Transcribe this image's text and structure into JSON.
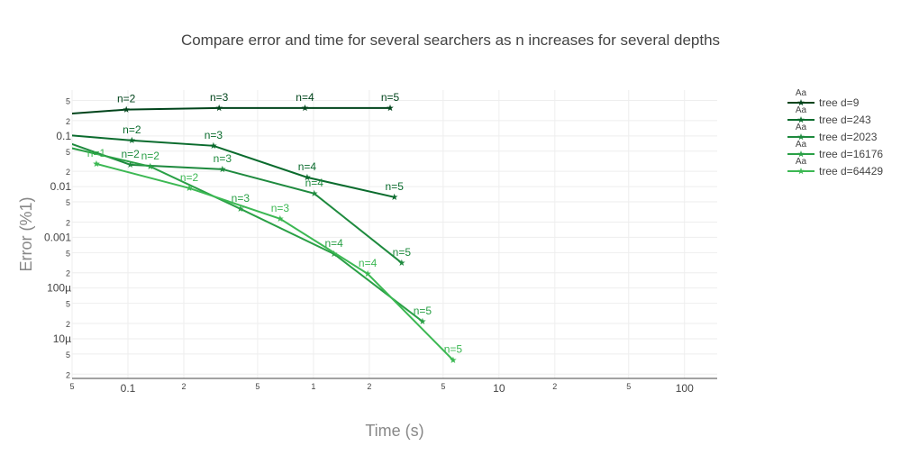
{
  "chart_data": {
    "type": "line",
    "title": "Compare error and time for several searchers as n increases for several depths",
    "x_label": "Time (s)",
    "y_label": "Error (%1)",
    "log_x": true,
    "log_y": true,
    "grid": true,
    "legend_position": "right",
    "legend_glyph": "Aa",
    "xlim": [
      0.05,
      150
    ],
    "ylim": [
      1.65e-06,
      0.8
    ],
    "xticks": [
      {
        "value": 0.05,
        "label": "5"
      },
      0.1,
      {
        "value": 0.2,
        "label": "2"
      },
      {
        "value": 0.5,
        "label": "5"
      },
      1,
      {
        "value": 2,
        "label": "2"
      },
      {
        "value": 5,
        "label": "5"
      },
      10,
      {
        "value": 20,
        "label": "2"
      },
      {
        "value": 50,
        "label": "5"
      },
      100
    ],
    "yticks": [
      {
        "value": 0.5,
        "label": "5"
      },
      {
        "value": 0.2,
        "label": "2"
      },
      0.1,
      {
        "value": 0.05,
        "label": "5"
      },
      {
        "value": 0.02,
        "label": "2"
      },
      0.01,
      {
        "value": 0.005,
        "label": "5"
      },
      {
        "value": 0.002,
        "label": "2"
      },
      0.001,
      {
        "value": 0.0005,
        "label": "5"
      },
      {
        "value": 0.0002,
        "label": "2"
      },
      {
        "value": 0.0001,
        "label": "100µ"
      },
      {
        "value": 5e-05,
        "label": "5"
      },
      {
        "value": 2e-05,
        "label": "2"
      },
      {
        "value": 1e-05,
        "label": "10µ"
      },
      {
        "value": 5e-06,
        "label": "5"
      },
      {
        "value": 2e-06,
        "label": "2"
      }
    ],
    "series": [
      {
        "name": "tree d=9",
        "color": "#00441b",
        "x": [
          0.04,
          0.098,
          0.31,
          0.9,
          2.59
        ],
        "values": [
          0.26,
          0.33,
          0.355,
          0.355,
          0.355
        ],
        "text": [
          null,
          "n=2",
          "n=3",
          "n=4",
          "n=5"
        ]
      },
      {
        "name": "tree d=243",
        "color": "#0a6b2d",
        "x": [
          0.04,
          0.105,
          0.289,
          0.925,
          2.73
        ],
        "values": [
          0.109,
          0.0815,
          0.0638,
          0.0152,
          0.0062
        ],
        "text": [
          null,
          "n=2",
          "n=3",
          "n=4",
          "n=5"
        ]
      },
      {
        "name": "tree d=2023",
        "color": "#1e8a3e",
        "x": [
          0.04,
          0.103,
          0.323,
          1.01,
          2.99
        ],
        "values": [
          0.092,
          0.027,
          0.022,
          0.0073,
          0.000313
        ],
        "text": [
          null,
          "n=2",
          "n=3",
          "n=4",
          "n=5"
        ]
      },
      {
        "name": "tree d=16176",
        "color": "#2aa046",
        "x": [
          0.04,
          0.132,
          0.404,
          1.29,
          3.87
        ],
        "values": [
          0.069,
          0.0249,
          0.00364,
          0.00047,
          2.19e-05
        ],
        "text": [
          null,
          "n=2",
          "n=3",
          "n=4",
          "n=5"
        ]
      },
      {
        "name": "tree d=64429",
        "color": "#3cb853",
        "x": [
          0.0676,
          0.214,
          0.661,
          1.96,
          5.66
        ],
        "values": [
          0.0281,
          0.00933,
          0.00232,
          0.000191,
          3.78e-06
        ],
        "text": [
          "n=1",
          "n=2",
          "n=3",
          "n=4",
          "n=5"
        ]
      }
    ]
  }
}
